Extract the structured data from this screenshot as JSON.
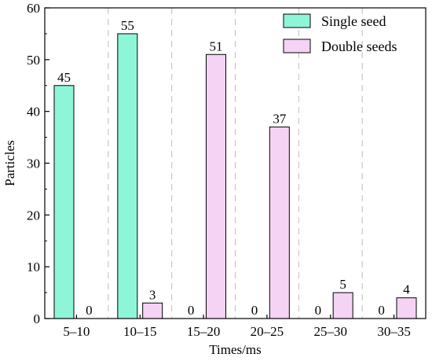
{
  "chart_data": {
    "type": "bar",
    "title": "",
    "xlabel": "Times/ms",
    "ylabel": "Particles",
    "categories": [
      "5–10",
      "10–15",
      "15–20",
      "20–25",
      "25–30",
      "30–35"
    ],
    "series": [
      {
        "name": "Single seed",
        "values": [
          45,
          55,
          0,
          0,
          0,
          0
        ],
        "color": "#8ff5d9"
      },
      {
        "name": "Double seeds",
        "values": [
          0,
          3,
          51,
          37,
          5,
          4
        ],
        "color": "#f4d3f4"
      }
    ],
    "ylim": [
      0,
      60
    ],
    "yticks": [
      0,
      10,
      20,
      30,
      40,
      50,
      60
    ],
    "grid": "vertical dashed separators between categories",
    "legend_position": "top-right",
    "data_labels": true
  }
}
